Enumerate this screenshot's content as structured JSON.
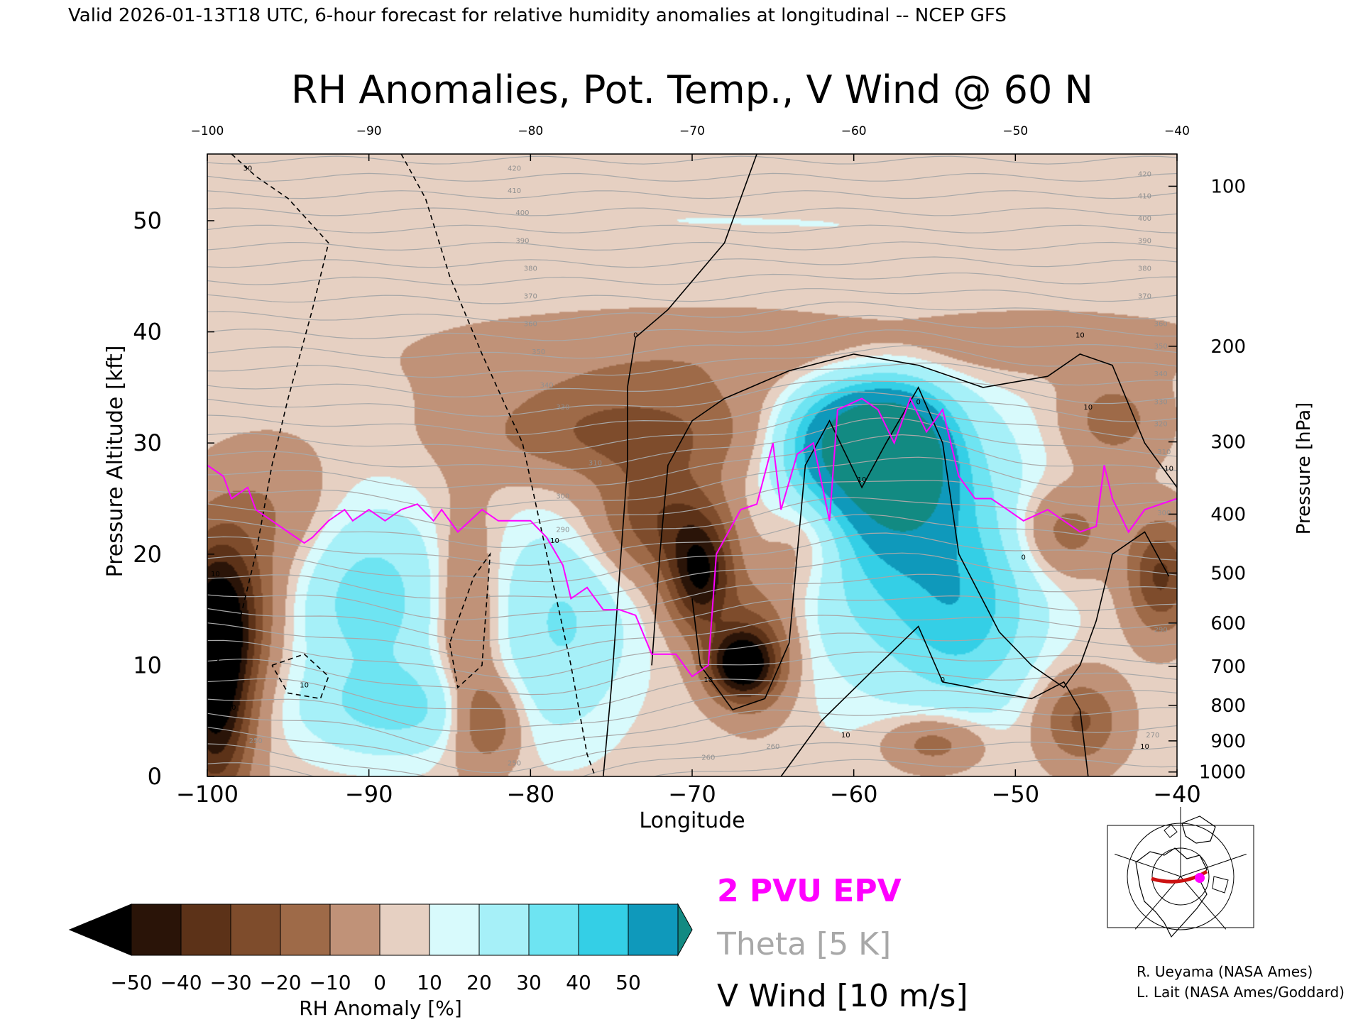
{
  "header": {
    "valid_line": "Valid 2026-01-13T18 UTC, 6-hour forecast for relative humidity anomalies at longitudinal -- NCEP GFS"
  },
  "chart_data": {
    "type": "heatmap",
    "title": "RH Anomalies, Pot. Temp., V Wind @ 60 N",
    "xlabel": "Longitude",
    "ylabel": "Pressure Altitude [kft]",
    "y2label": "Pressure [hPa]",
    "xlim": [
      -100,
      -40
    ],
    "ylim": [
      0,
      56
    ],
    "x_ticks": [
      -100,
      -90,
      -80,
      -70,
      -60,
      -50,
      -40
    ],
    "x_tick_labels": [
      "−100",
      "−90",
      "−80",
      "−70",
      "−60",
      "−50",
      "−40"
    ],
    "y_ticks": [
      0,
      10,
      20,
      30,
      40,
      50
    ],
    "y_tick_labels": [
      "0",
      "10",
      "20",
      "30",
      "40",
      "50"
    ],
    "pressure_ticks": [
      {
        "hPa": 100,
        "kft": 53.1,
        "label": "100"
      },
      {
        "hPa": 200,
        "kft": 38.7,
        "label": "200"
      },
      {
        "hPa": 300,
        "kft": 30.1,
        "label": "300"
      },
      {
        "hPa": 400,
        "kft": 23.6,
        "label": "400"
      },
      {
        "hPa": 500,
        "kft": 18.3,
        "label": "500"
      },
      {
        "hPa": 600,
        "kft": 13.8,
        "label": "600"
      },
      {
        "hPa": 700,
        "kft": 9.9,
        "label": "700"
      },
      {
        "hPa": 800,
        "kft": 6.4,
        "label": "800"
      },
      {
        "hPa": 900,
        "kft": 3.2,
        "label": "900"
      },
      {
        "hPa": 1000,
        "kft": 0.4,
        "label": "1000"
      }
    ],
    "rh_anomaly_field": {
      "units": "%",
      "background": 3,
      "blobs": [
        {
          "lon": -99.5,
          "kft": 8,
          "rlon": 2.2,
          "rkft": 10,
          "v": -60
        },
        {
          "lon": -99,
          "kft": 15,
          "rlon": 3,
          "rkft": 7,
          "v": -35
        },
        {
          "lon": -96,
          "kft": 24,
          "rlon": 4,
          "rkft": 6,
          "v": -12
        },
        {
          "lon": -90,
          "kft": 16,
          "rlon": 4.5,
          "rkft": 8,
          "v": 22
        },
        {
          "lon": -88,
          "kft": 6,
          "rlon": 6,
          "rkft": 4,
          "v": 18
        },
        {
          "lon": -84,
          "kft": 14,
          "rlon": 1.8,
          "rkft": 10,
          "v": -18
        },
        {
          "lon": -82.5,
          "kft": 5,
          "rlon": 2,
          "rkft": 4,
          "v": -25
        },
        {
          "lon": -78,
          "kft": 14,
          "rlon": 4,
          "rkft": 9,
          "v": 18
        },
        {
          "lon": -74,
          "kft": 31,
          "rlon": 9,
          "rkft": 4.5,
          "v": -26
        },
        {
          "lon": -72,
          "kft": 23,
          "rlon": 4,
          "rkft": 5,
          "v": -30
        },
        {
          "lon": -69.5,
          "kft": 18,
          "rlon": 2,
          "rkft": 5,
          "v": -50
        },
        {
          "lon": -67,
          "kft": 10,
          "rlon": 2,
          "rkft": 3,
          "v": -55
        },
        {
          "lon": -66,
          "kft": 12,
          "rlon": 2.5,
          "rkft": 6,
          "v": -25
        },
        {
          "lon": -70,
          "kft": 38,
          "rlon": 16,
          "rkft": 4,
          "v": -10
        },
        {
          "lon": -60,
          "kft": 30,
          "rlon": 4,
          "rkft": 5,
          "v": 60
        },
        {
          "lon": -57,
          "kft": 28,
          "rlon": 3,
          "rkft": 6,
          "v": 58
        },
        {
          "lon": -57,
          "kft": 22,
          "rlon": 7,
          "rkft": 12,
          "v": 30
        },
        {
          "lon": -63,
          "kft": 21,
          "rlon": 2.5,
          "rkft": 5,
          "v": -15
        },
        {
          "lon": -53,
          "kft": 14,
          "rlon": 4,
          "rkft": 8,
          "v": 20
        },
        {
          "lon": -47,
          "kft": 22,
          "rlon": 3,
          "rkft": 4,
          "v": -20
        },
        {
          "lon": -46,
          "kft": 5,
          "rlon": 2.5,
          "rkft": 4,
          "v": -25
        },
        {
          "lon": -55,
          "kft": 3,
          "rlon": 3,
          "rkft": 2.5,
          "v": -20
        },
        {
          "lon": -41,
          "kft": 18,
          "rlon": 2,
          "rkft": 5,
          "v": -35
        },
        {
          "lon": -44,
          "kft": 32,
          "rlon": 3,
          "rkft": 4,
          "v": -18
        },
        {
          "lon": -50,
          "kft": 39,
          "rlon": 12,
          "rkft": 3,
          "v": -8
        },
        {
          "lon": -70,
          "kft": 50,
          "rlon": 40,
          "rkft": 6,
          "v": 2
        }
      ]
    },
    "theta_contours": {
      "units": "K",
      "interval": 5,
      "labels": [
        {
          "lon": -97,
          "kft": 3,
          "text": "250"
        },
        {
          "lon": -81,
          "kft": 1,
          "text": "250"
        },
        {
          "lon": -69,
          "kft": 1.5,
          "text": "260"
        },
        {
          "lon": -65,
          "kft": 2.5,
          "text": "260"
        },
        {
          "lon": -78,
          "kft": 22,
          "text": "290"
        },
        {
          "lon": -78,
          "kft": 25,
          "text": "300"
        },
        {
          "lon": -76,
          "kft": 28,
          "text": "310"
        },
        {
          "lon": -78,
          "kft": 33,
          "text": "330"
        },
        {
          "lon": -79,
          "kft": 35,
          "text": "340"
        },
        {
          "lon": -79.5,
          "kft": 38,
          "text": "350"
        },
        {
          "lon": -80,
          "kft": 40.5,
          "text": "360"
        },
        {
          "lon": -80,
          "kft": 43,
          "text": "370"
        },
        {
          "lon": -80,
          "kft": 45.5,
          "text": "380"
        },
        {
          "lon": -80.5,
          "kft": 48,
          "text": "390"
        },
        {
          "lon": -80.5,
          "kft": 50.5,
          "text": "400"
        },
        {
          "lon": -81,
          "kft": 52.5,
          "text": "410"
        },
        {
          "lon": -81,
          "kft": 54.5,
          "text": "420"
        },
        {
          "lon": -42,
          "kft": 54,
          "text": "420"
        },
        {
          "lon": -42,
          "kft": 52,
          "text": "410"
        },
        {
          "lon": -42,
          "kft": 50,
          "text": "400"
        },
        {
          "lon": -42,
          "kft": 48,
          "text": "390"
        },
        {
          "lon": -42,
          "kft": 45.5,
          "text": "380"
        },
        {
          "lon": -42,
          "kft": 43,
          "text": "370"
        },
        {
          "lon": -41,
          "kft": 40.5,
          "text": "360"
        },
        {
          "lon": -41,
          "kft": 38.5,
          "text": "350"
        },
        {
          "lon": -41,
          "kft": 36,
          "text": "340"
        },
        {
          "lon": -41,
          "kft": 33.5,
          "text": "330"
        },
        {
          "lon": -41,
          "kft": 31.5,
          "text": "320"
        },
        {
          "lon": -40.8,
          "kft": 29,
          "text": "310"
        },
        {
          "lon": -40.8,
          "kft": 23.5,
          "text": "300"
        },
        {
          "lon": -41,
          "kft": 13,
          "text": "290"
        },
        {
          "lon": -41.5,
          "kft": 3.5,
          "text": "270"
        }
      ]
    },
    "epv_2pvu_line": [
      [
        -100,
        28
      ],
      [
        -99,
        27
      ],
      [
        -98.5,
        25
      ],
      [
        -97.5,
        26
      ],
      [
        -97,
        24
      ],
      [
        -96,
        23
      ],
      [
        -95,
        22
      ],
      [
        -94,
        21
      ],
      [
        -93.5,
        21.5
      ],
      [
        -92.5,
        23
      ],
      [
        -91.5,
        24
      ],
      [
        -91,
        23
      ],
      [
        -90,
        24
      ],
      [
        -89,
        23
      ],
      [
        -88,
        24
      ],
      [
        -87,
        24.5
      ],
      [
        -86,
        23
      ],
      [
        -85.5,
        24
      ],
      [
        -84.5,
        22
      ],
      [
        -83,
        24
      ],
      [
        -82,
        23
      ],
      [
        -80,
        23
      ],
      [
        -79,
        21.5
      ],
      [
        -78,
        19
      ],
      [
        -77.5,
        16
      ],
      [
        -76.5,
        17
      ],
      [
        -75.5,
        15
      ],
      [
        -74.5,
        15
      ],
      [
        -73.5,
        14.5
      ],
      [
        -72.5,
        11
      ],
      [
        -71,
        11
      ],
      [
        -70,
        9
      ],
      [
        -69,
        10
      ],
      [
        -68.5,
        20
      ],
      [
        -67,
        24
      ],
      [
        -66,
        24.5
      ],
      [
        -65,
        30
      ],
      [
        -64.5,
        24
      ],
      [
        -63.5,
        29
      ],
      [
        -62.5,
        30
      ],
      [
        -61.5,
        23
      ],
      [
        -61,
        33
      ],
      [
        -59.5,
        34
      ],
      [
        -58.5,
        33
      ],
      [
        -57.5,
        30
      ],
      [
        -56.5,
        34
      ],
      [
        -55.5,
        31
      ],
      [
        -54.5,
        33
      ],
      [
        -53.5,
        27
      ],
      [
        -52.5,
        25
      ],
      [
        -51.5,
        25
      ],
      [
        -50.5,
        24
      ],
      [
        -49.5,
        23
      ],
      [
        -48,
        24
      ],
      [
        -47,
        23
      ],
      [
        -46,
        22
      ],
      [
        -45,
        22.5
      ],
      [
        -44.5,
        28
      ],
      [
        -44,
        25
      ],
      [
        -43,
        22
      ],
      [
        -42,
        24
      ],
      [
        -41,
        24.5
      ],
      [
        -40,
        25
      ]
    ],
    "v_wind_labels": [
      {
        "lon": -97.5,
        "kft": 54.5,
        "text": "30"
      },
      {
        "lon": -99.5,
        "kft": 18,
        "text": "10"
      },
      {
        "lon": -94,
        "kft": 8,
        "text": "10"
      },
      {
        "lon": -98.5,
        "kft": 6,
        "text": "10"
      },
      {
        "lon": -78.5,
        "kft": 21,
        "text": "10"
      },
      {
        "lon": -73.5,
        "kft": 39.5,
        "text": "0"
      },
      {
        "lon": -69,
        "kft": 8.5,
        "text": "10"
      },
      {
        "lon": -59.5,
        "kft": 26.5,
        "text": "10"
      },
      {
        "lon": -56,
        "kft": 33.5,
        "text": "0"
      },
      {
        "lon": -54.5,
        "kft": 8.5,
        "text": "0"
      },
      {
        "lon": -60.5,
        "kft": 3.5,
        "text": "10"
      },
      {
        "lon": -49.5,
        "kft": 19.5,
        "text": "0"
      },
      {
        "lon": -45.5,
        "kft": 33,
        "text": "10"
      },
      {
        "lon": -46,
        "kft": 39.5,
        "text": "10"
      },
      {
        "lon": -40.5,
        "kft": 27.5,
        "text": "10"
      },
      {
        "lon": -42,
        "kft": 2.5,
        "text": "10"
      }
    ]
  },
  "colorbar": {
    "label": "RH Anomaly [%]",
    "tick_labels": [
      "−50",
      "−40",
      "−30",
      "−20",
      "−10",
      "0",
      "10",
      "20",
      "30",
      "40",
      "50"
    ],
    "colors": [
      "#2a1408",
      "#5c3218",
      "#7e4c2c",
      "#9e6a48",
      "#c09278",
      "#e6d0c2",
      "#d8fafc",
      "#a6f0f8",
      "#6ee4f2",
      "#34cfe6",
      "#0f99bb"
    ],
    "under_color": "#000000",
    "over_color": "#128a82"
  },
  "legend": {
    "epv": "2 PVU EPV",
    "theta": "Theta [5 K]",
    "wind": "V Wind [10 m/s]"
  },
  "colors": {
    "epv": "#ff00ff",
    "theta": "#a8a8a8",
    "wind": "#000000",
    "section_line": "#cc1111"
  },
  "inset_map": {
    "description_icon": "globe-map-icon"
  },
  "credits": {
    "line1": "R. Ueyama (NASA Ames)",
    "line2": "L. Lait (NASA Ames/Goddard)"
  }
}
